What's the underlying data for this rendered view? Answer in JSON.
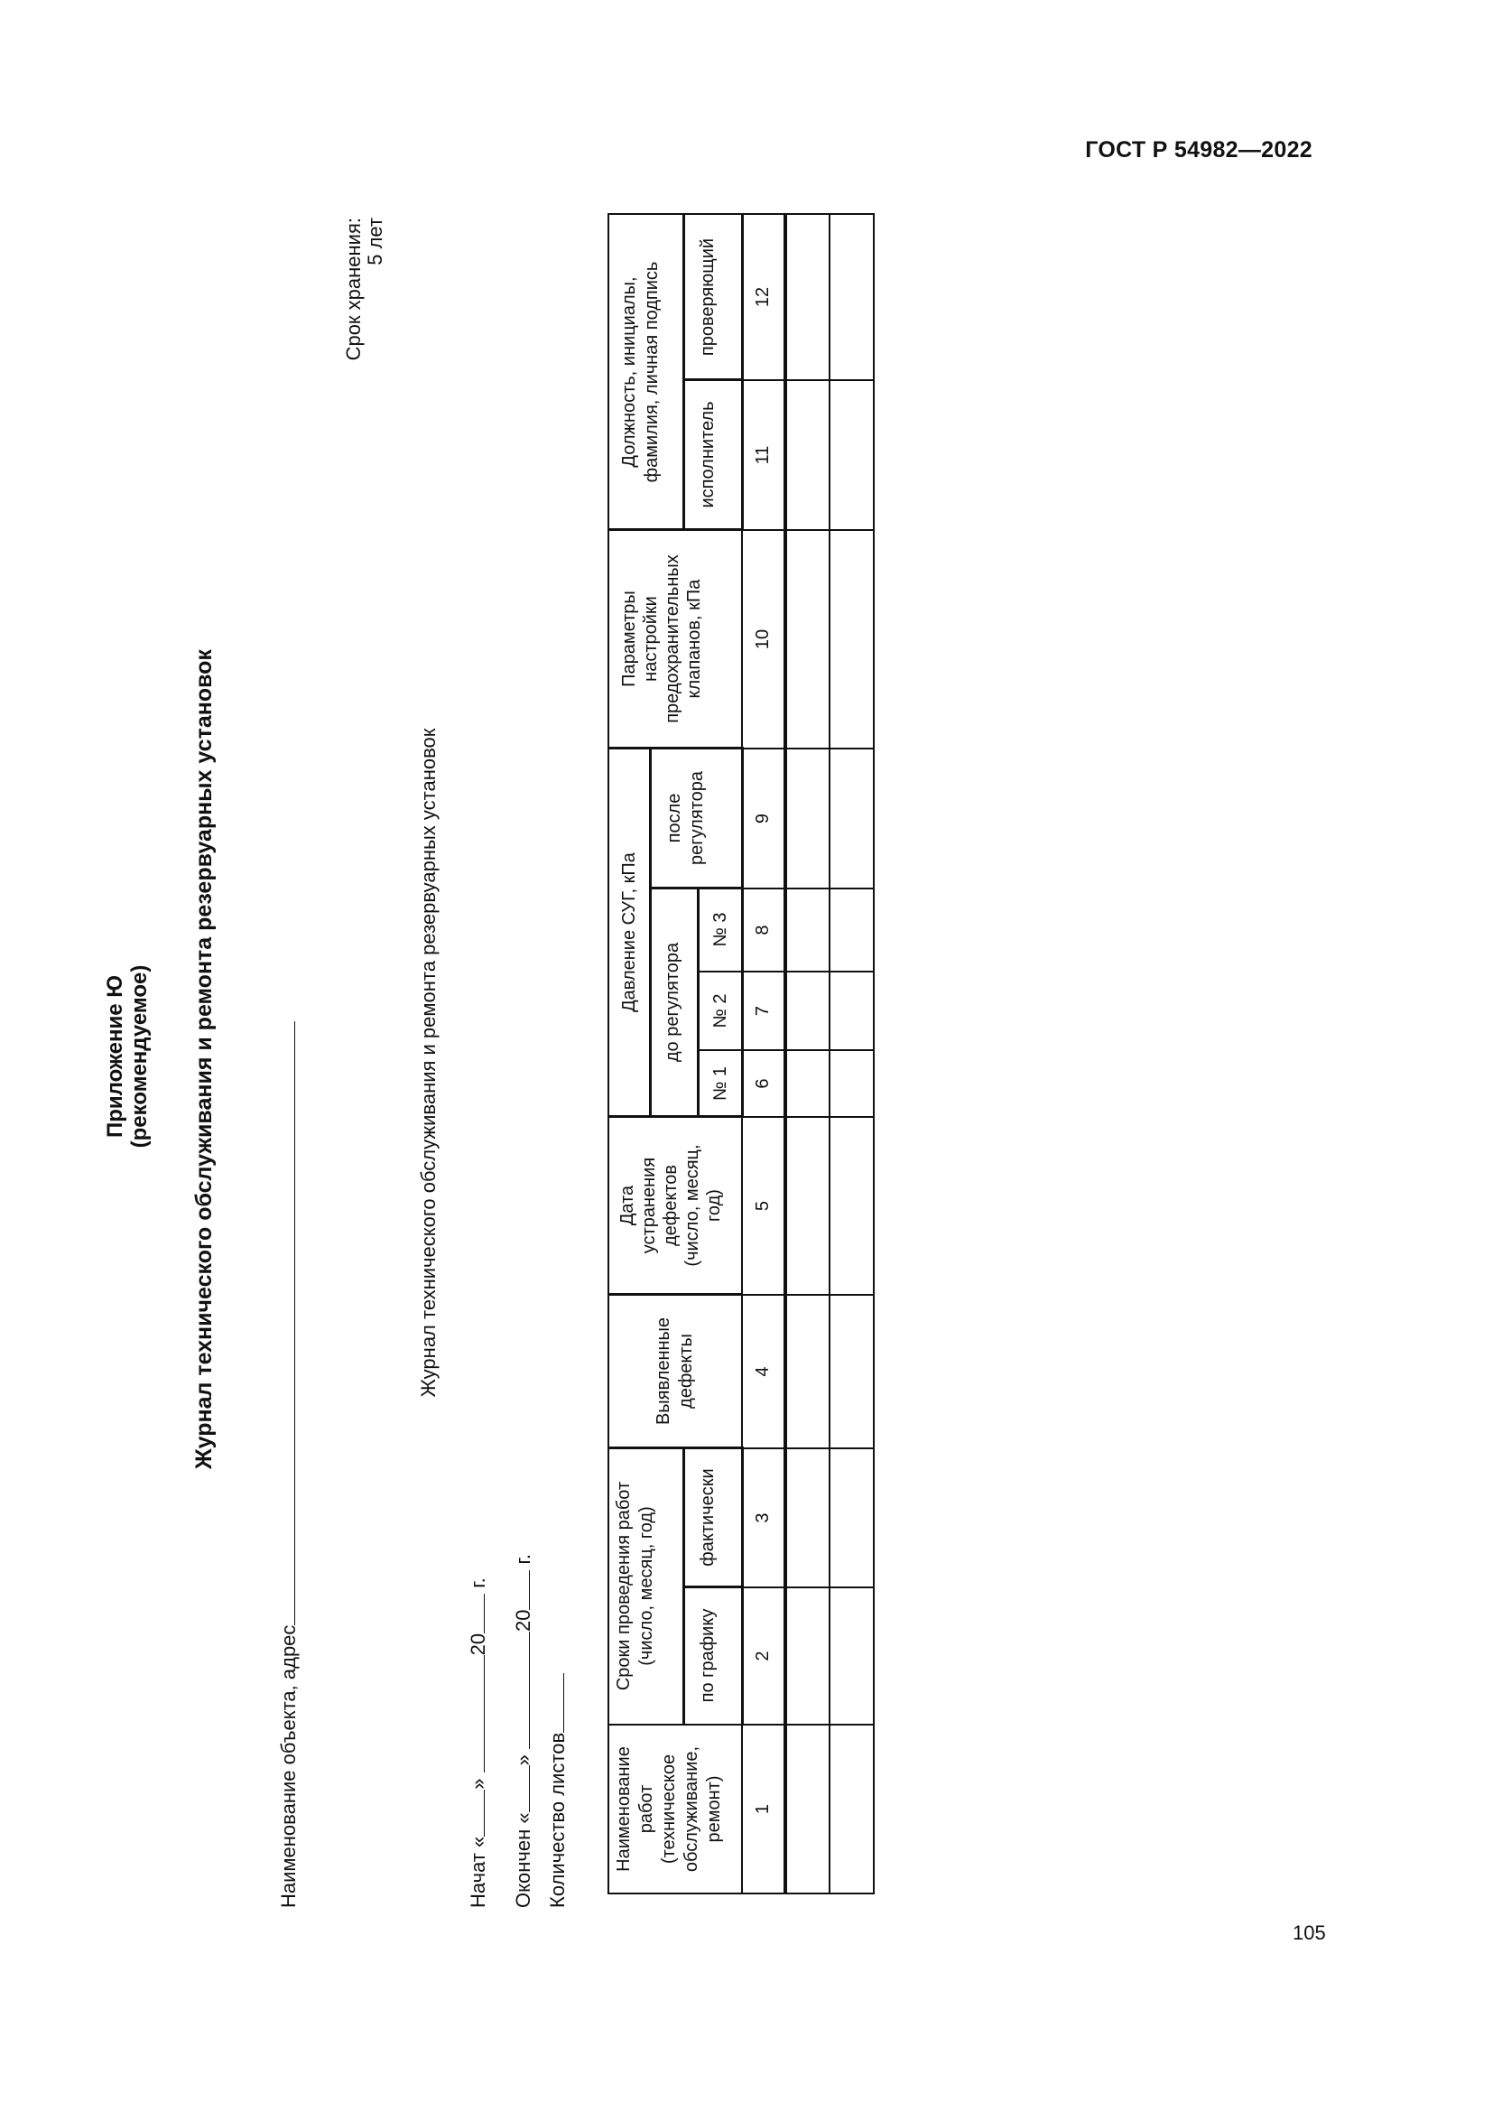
{
  "header": {
    "standard": "ГОСТ Р 54982—2022"
  },
  "footer": {
    "page_number": "105"
  },
  "appendix": {
    "title": "Приложение Ю",
    "status": "(рекомендуемое)"
  },
  "document_title": "Журнал технического обслуживания и ремонта резервуарных установок",
  "retention": {
    "label": "Срок хранения:",
    "value": "5 лет"
  },
  "object_field": {
    "label": "Наименование объекта, адрес"
  },
  "journal_subtitle": "Журнал технического обслуживания и ремонта резервуарных установок",
  "started": {
    "label": "Начат «",
    "quote_close": "»",
    "century": "20",
    "year_suffix": "г."
  },
  "finished": {
    "label": "Окончен «",
    "quote_close": "»",
    "century": "20",
    "year_suffix": "г."
  },
  "sheets": {
    "label": "Количество листов"
  },
  "table": {
    "headers": {
      "work_name": "Наименование\nработ\n(техническое\nобслуживание,\nремонт)",
      "terms": "Сроки проведения работ\n(число, месяц, год)",
      "by_schedule": "по графику",
      "actual": "фактически",
      "defects": "Выявленные\nдефекты",
      "fix_date": "Дата\nустранения\nдефектов\n(число, месяц,\nгод)",
      "pressure": "Давление СУГ, кПа",
      "before_regulator": "до регулятора",
      "no1": "№ 1",
      "no2": "№ 2",
      "no3": "№ 3",
      "after_regulator": "после\nрегулятора",
      "valve_params": "Параметры\nнастройки\nпредохранительных\nклапанов, кПа",
      "position": "Должность, инициалы,\nфамилия, личная подпись",
      "executor": "исполнитель",
      "inspector": "проверяющий"
    },
    "column_numbers": [
      "1",
      "2",
      "3",
      "4",
      "5",
      "6",
      "7",
      "8",
      "9",
      "10",
      "11",
      "12"
    ],
    "rows": [
      [
        "",
        "",
        "",
        "",
        "",
        "",
        "",
        "",
        "",
        "",
        "",
        ""
      ],
      [
        "",
        "",
        "",
        "",
        "",
        "",
        "",
        "",
        "",
        "",
        "",
        ""
      ]
    ]
  }
}
